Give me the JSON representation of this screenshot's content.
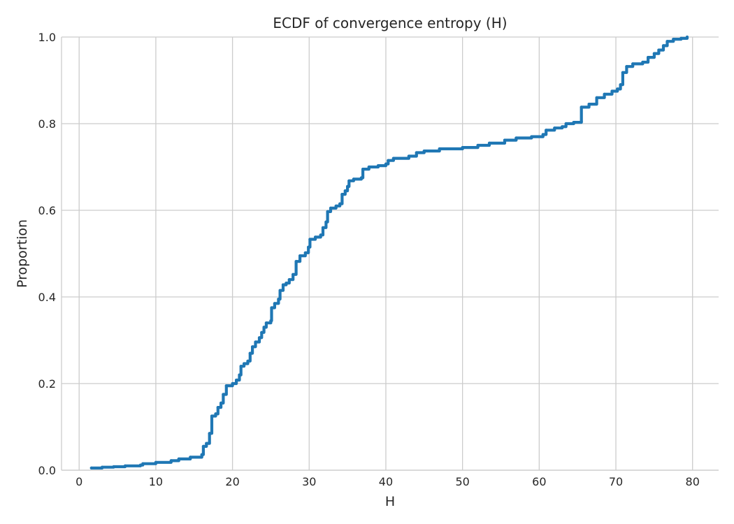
{
  "chart_data": {
    "type": "line",
    "subtype": "ecdf-step",
    "title": "ECDF of convergence entropy (H)",
    "xlabel": "H",
    "ylabel": "Proportion",
    "xlim": [
      -2.3,
      83.4
    ],
    "ylim": [
      0,
      1
    ],
    "xticks": [
      0,
      10,
      20,
      30,
      40,
      50,
      60,
      70,
      80
    ],
    "xtick_labels": [
      "0",
      "10",
      "20",
      "30",
      "40",
      "50",
      "60",
      "70",
      "80"
    ],
    "yticks": [
      0,
      0.2,
      0.4,
      0.6,
      0.8,
      1.0
    ],
    "ytick_labels": [
      "0.0",
      "0.2",
      "0.4",
      "0.6",
      "0.8",
      "1.0"
    ],
    "grid": true,
    "legend": "none",
    "colors": {
      "line": "#1f77b4",
      "grid": "#cccccc",
      "text": "#262626"
    },
    "series": [
      {
        "points": [
          [
            1.6,
            0.005
          ],
          [
            3.0,
            0.007
          ],
          [
            4.5,
            0.008
          ],
          [
            6.0,
            0.01
          ],
          [
            8.0,
            0.012
          ],
          [
            8.3,
            0.015
          ],
          [
            10.0,
            0.018
          ],
          [
            12.0,
            0.022
          ],
          [
            13.0,
            0.026
          ],
          [
            14.5,
            0.03
          ],
          [
            16.0,
            0.036
          ],
          [
            16.2,
            0.055
          ],
          [
            16.6,
            0.062
          ],
          [
            17.0,
            0.085
          ],
          [
            17.3,
            0.125
          ],
          [
            17.8,
            0.13
          ],
          [
            18.1,
            0.145
          ],
          [
            18.5,
            0.155
          ],
          [
            18.8,
            0.175
          ],
          [
            19.2,
            0.195
          ],
          [
            20.0,
            0.2
          ],
          [
            20.5,
            0.208
          ],
          [
            20.9,
            0.22
          ],
          [
            21.1,
            0.24
          ],
          [
            21.5,
            0.246
          ],
          [
            22.0,
            0.252
          ],
          [
            22.3,
            0.27
          ],
          [
            22.6,
            0.285
          ],
          [
            23.0,
            0.296
          ],
          [
            23.5,
            0.306
          ],
          [
            23.8,
            0.318
          ],
          [
            24.1,
            0.33
          ],
          [
            24.4,
            0.34
          ],
          [
            25.0,
            0.345
          ],
          [
            25.1,
            0.375
          ],
          [
            25.5,
            0.385
          ],
          [
            26.0,
            0.395
          ],
          [
            26.2,
            0.415
          ],
          [
            26.6,
            0.428
          ],
          [
            27.0,
            0.432
          ],
          [
            27.4,
            0.44
          ],
          [
            27.9,
            0.452
          ],
          [
            28.3,
            0.482
          ],
          [
            28.8,
            0.495
          ],
          [
            29.5,
            0.502
          ],
          [
            29.9,
            0.515
          ],
          [
            30.1,
            0.533
          ],
          [
            30.8,
            0.538
          ],
          [
            31.5,
            0.543
          ],
          [
            31.8,
            0.56
          ],
          [
            32.2,
            0.573
          ],
          [
            32.4,
            0.597
          ],
          [
            32.8,
            0.605
          ],
          [
            33.5,
            0.61
          ],
          [
            34.0,
            0.615
          ],
          [
            34.3,
            0.637
          ],
          [
            34.7,
            0.645
          ],
          [
            35.0,
            0.655
          ],
          [
            35.2,
            0.668
          ],
          [
            35.8,
            0.672
          ],
          [
            36.8,
            0.675
          ],
          [
            37.0,
            0.695
          ],
          [
            37.8,
            0.7
          ],
          [
            39.0,
            0.703
          ],
          [
            40.0,
            0.707
          ],
          [
            40.3,
            0.715
          ],
          [
            41.0,
            0.72
          ],
          [
            43.0,
            0.725
          ],
          [
            44.0,
            0.733
          ],
          [
            45.0,
            0.737
          ],
          [
            47.0,
            0.742
          ],
          [
            50.0,
            0.745
          ],
          [
            52.0,
            0.75
          ],
          [
            53.5,
            0.755
          ],
          [
            55.5,
            0.762
          ],
          [
            57.0,
            0.767
          ],
          [
            59.0,
            0.77
          ],
          [
            60.5,
            0.775
          ],
          [
            60.9,
            0.785
          ],
          [
            62.0,
            0.79
          ],
          [
            63.0,
            0.793
          ],
          [
            63.5,
            0.8
          ],
          [
            64.5,
            0.803
          ],
          [
            65.5,
            0.805
          ],
          [
            65.5,
            0.838
          ],
          [
            66.5,
            0.845
          ],
          [
            67.5,
            0.86
          ],
          [
            68.5,
            0.868
          ],
          [
            69.5,
            0.875
          ],
          [
            70.2,
            0.88
          ],
          [
            70.6,
            0.89
          ],
          [
            70.9,
            0.918
          ],
          [
            71.4,
            0.932
          ],
          [
            72.2,
            0.938
          ],
          [
            73.5,
            0.942
          ],
          [
            74.2,
            0.953
          ],
          [
            75.0,
            0.962
          ],
          [
            75.6,
            0.97
          ],
          [
            76.2,
            0.98
          ],
          [
            76.7,
            0.99
          ],
          [
            77.5,
            0.995
          ],
          [
            78.5,
            0.997
          ],
          [
            79.3,
            1.0
          ]
        ]
      }
    ]
  }
}
